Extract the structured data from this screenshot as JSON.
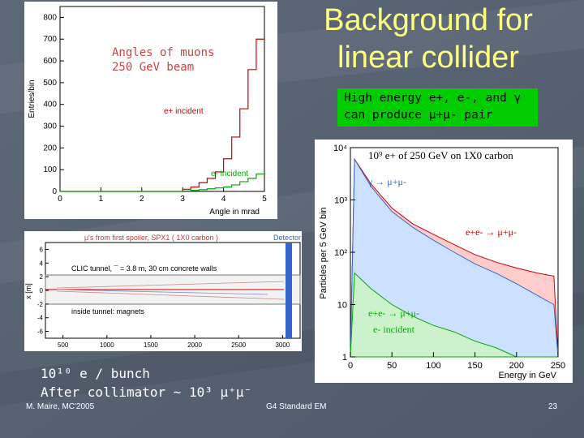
{
  "slide": {
    "title": "Background for linear collider",
    "title_line1": "Background for",
    "title_line2": "linear collider",
    "caption_line1": "Angles of muons",
    "caption_line2": "250 GeV beam",
    "green_box_line1": "High energy e+, e-, and γ",
    "green_box_line2": "can produce μ+μ- pair",
    "stats_line1": "10¹⁰ e / bunch",
    "stats_line2": "After collimator ~ 10³  μ⁺μ⁻",
    "footer_left": "M. Maire, MC'2005",
    "footer_center": "G4 Standard EM",
    "footer_right": "23"
  },
  "hist1": {
    "ylabel": "Entries/bin",
    "xlabel": "Angle in mrad",
    "label_e_plus": "e+ incident",
    "label_e_minus": "e- incident",
    "yticks": [
      "0",
      "100",
      "200",
      "300",
      "400",
      "500",
      "600",
      "700",
      "800"
    ],
    "xticks": [
      "0",
      "1",
      "2",
      "3",
      "4",
      "5"
    ]
  },
  "tunnel": {
    "title": "μ's from first spoiler, SPX1  ( 1X0 carbon )",
    "detector_label": "Detector",
    "text1": "CLIC tunnel,  ¯ = 3.8 m, 30 cm concrete walls",
    "text2": "inside tunnel: magnets",
    "ylabel": "x [m]",
    "yticks": [
      "6",
      "4",
      "2",
      "0",
      "-2",
      "-4",
      "-6"
    ],
    "xticks": [
      "500",
      "1000",
      "1500",
      "2000",
      "2500",
      "3000"
    ]
  },
  "hist2": {
    "title": "10⁹ e+ of 250 GeV on 1X0  carbon",
    "ylabel": "Particles per 5 GeV bin",
    "xlabel": "Energy in GeV",
    "label_gamma": "γ → μ+μ-",
    "label_ee": "e+e- → μ+μ-",
    "label_epem": "e+e- → μ+μ-",
    "label_e_minus": "e- incident",
    "yticks": [
      "1",
      "10",
      "10²",
      "10³",
      "10⁴"
    ],
    "xticks": [
      "0",
      "50",
      "100",
      "150",
      "200",
      "250"
    ]
  },
  "chart_data": [
    {
      "type": "bar",
      "xlabel": "Angle in mrad",
      "ylabel": "Entries/bin",
      "ylim": [
        0,
        850
      ],
      "xlim": [
        0,
        5
      ],
      "x": [
        3.2,
        3.4,
        3.6,
        3.8,
        4.0,
        4.2,
        4.4,
        4.6,
        4.8,
        5.0
      ],
      "series": [
        {
          "name": "e+ incident",
          "values": [
            10,
            20,
            40,
            60,
            90,
            150,
            250,
            380,
            560,
            700
          ]
        },
        {
          "name": "e- incident",
          "values": [
            2,
            5,
            8,
            12,
            16,
            20,
            30,
            45,
            60,
            80
          ]
        }
      ]
    },
    {
      "type": "area",
      "title": "10⁹ e+ of 250 GeV on 1X0 carbon",
      "xlabel": "Energy in GeV",
      "ylabel": "Particles per 5 GeV bin",
      "xlim": [
        0,
        250
      ],
      "ylim": [
        1,
        10000
      ],
      "log_y": true,
      "x": [
        5,
        25,
        50,
        75,
        100,
        125,
        150,
        175,
        200,
        225,
        245
      ],
      "series": [
        {
          "name": "γ → μ+μ-",
          "values": [
            6000,
            1800,
            600,
            300,
            170,
            100,
            60,
            40,
            25,
            15,
            10
          ]
        },
        {
          "name": "e+e- → μ+μ-",
          "values": [
            6000,
            2000,
            700,
            350,
            220,
            140,
            90,
            65,
            50,
            40,
            35
          ]
        },
        {
          "name": "e- incident",
          "values": [
            40,
            20,
            10,
            6,
            4,
            3,
            2,
            1.5,
            1,
            1,
            1
          ]
        }
      ]
    }
  ]
}
